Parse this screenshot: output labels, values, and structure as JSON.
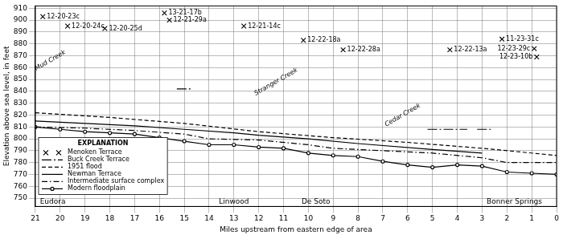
{
  "chart_data": {
    "type": "line",
    "x_label": "Miles upstream from eastern edge of area",
    "y_label": "Elevation above sea level, in feet",
    "xlim": [
      21,
      0
    ],
    "xticks": [
      0,
      1,
      2,
      3,
      4,
      5,
      6,
      7,
      8,
      9,
      10,
      11,
      12,
      13,
      14,
      15,
      16,
      17,
      18,
      19,
      20,
      21
    ],
    "ylim": [
      743,
      912
    ],
    "yticks": [
      750,
      760,
      770,
      780,
      790,
      800,
      810,
      820,
      830,
      840,
      850,
      860,
      870,
      880,
      890,
      900,
      910
    ],
    "grid": true,
    "legend": "lower left",
    "legend_title": "EXPLANATION",
    "series": [
      {
        "name": "Menoken Terrace",
        "color": "#000000",
        "marker": "x",
        "line_style": "none",
        "x": [
          20.7,
          19.7,
          18.2,
          15.8,
          15.6,
          12.6,
          10.2,
          8.6,
          4.3,
          2.2,
          0.9,
          0.8
        ],
        "values": [
          903,
          895,
          893,
          906,
          900,
          895,
          883,
          875,
          875,
          884,
          876,
          869
        ],
        "point_labels": [
          "12-20-23c",
          "12-20-24c",
          "12-20-25d",
          "13-21-17b",
          "12-21-29a",
          "12-21-14c",
          "12-22-18a",
          "12-22-28a",
          "12-22-13a",
          "11-23-31c",
          "12-23-29c",
          "12-23-10b"
        ]
      },
      {
        "name": "Buck Creek Terrace",
        "color": "#000000",
        "line_style": "long-dash-dot",
        "x": [
          15.3,
          14.7,
          10,
          5.2,
          3.6,
          3.4,
          3.2,
          2.6
        ],
        "values": [
          842,
          842,
          null,
          808,
          808,
          null,
          808,
          808
        ]
      },
      {
        "name": "1951 flood",
        "color": "#000000",
        "line_style": "dashed",
        "x": [
          21,
          18,
          15,
          12,
          9,
          6,
          3,
          0
        ],
        "values": [
          822,
          818,
          813,
          806,
          801,
          797,
          792,
          786
        ]
      },
      {
        "name": "Newman Terrace",
        "color": "#000000",
        "line_style": "solid",
        "x": [
          21,
          19,
          17,
          15,
          13,
          12,
          10,
          8,
          5,
          3
        ],
        "values": [
          815,
          813,
          811,
          808,
          805,
          803,
          800,
          796,
          791,
          788
        ]
      },
      {
        "name": "Intermediate surface complex",
        "color": "#000000",
        "line_style": "dash-dot",
        "x": [
          21,
          19,
          17,
          15,
          14,
          12,
          10,
          9,
          7,
          5,
          3,
          2,
          0
        ],
        "values": [
          810,
          809,
          807,
          804,
          800,
          799,
          795,
          792,
          790,
          788,
          784,
          780,
          780
        ]
      },
      {
        "name": "Modern floodplain",
        "color": "#000000",
        "marker": "circle",
        "line_style": "solid",
        "x": [
          21,
          20,
          19,
          18,
          17,
          16,
          15,
          14,
          13,
          12,
          11,
          10,
          9,
          8,
          7,
          6,
          5,
          4,
          3,
          2,
          1,
          0
        ],
        "values": [
          810,
          808,
          806,
          805,
          804,
          801,
          798,
          795,
          795,
          793,
          792,
          788,
          786,
          785,
          781,
          778,
          776,
          778,
          777,
          772,
          771,
          770
        ]
      }
    ],
    "annotations": [
      {
        "text": "Mud Creek",
        "x": 20.4,
        "y": 866
      },
      {
        "text": "Stranger Creek",
        "x": 11.3,
        "y": 848
      },
      {
        "text": "Cedar Creek",
        "x": 6.2,
        "y": 820
      }
    ],
    "places": [
      {
        "text": "Eudora",
        "x": 20.3,
        "y": 747
      },
      {
        "text": "Linwood",
        "x": 13,
        "y": 747
      },
      {
        "text": "De Soto",
        "x": 9.7,
        "y": 747
      },
      {
        "text": "Bonner Springs",
        "x": 1.7,
        "y": 747
      }
    ]
  }
}
